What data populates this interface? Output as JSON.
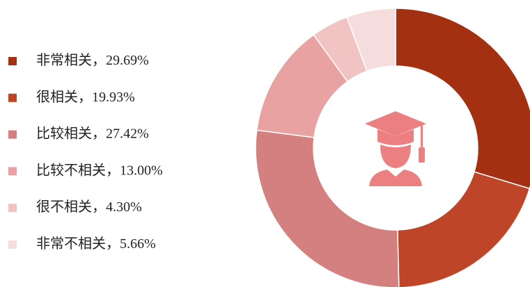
{
  "chart_data": {
    "type": "donut",
    "categories": [
      "非常相关",
      "很相关",
      "比较相关",
      "比较不相关",
      "很不相关",
      "非常不相关"
    ],
    "label_separator": "，",
    "values": [
      29.69,
      19.93,
      27.42,
      13.0,
      4.3,
      5.66
    ],
    "value_labels": [
      "29.69%",
      "19.93%",
      "27.42%",
      "13.00%",
      "4.30%",
      "5.66%"
    ],
    "colors": [
      "#a33010",
      "#bf4528",
      "#d48080",
      "#e8a2a2",
      "#f2c3c3",
      "#f6dddd"
    ]
  }
}
